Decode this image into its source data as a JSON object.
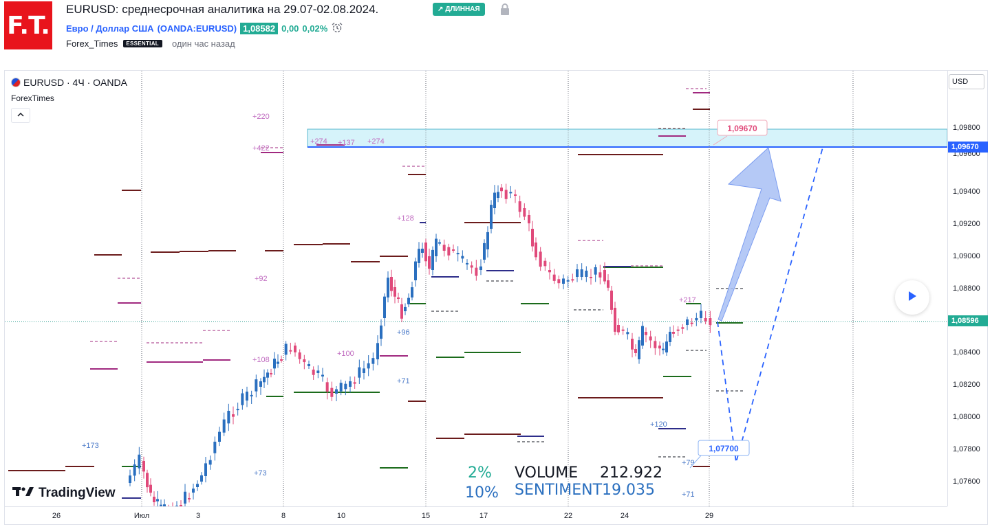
{
  "header": {
    "logo_text": "F.T.",
    "title": "EURUSD: среднесрочная аналитика на 29.07-02.08.2024.",
    "badge_label": "ДЛИННАЯ",
    "symbol_name": "Евро / Доллар США",
    "symbol_code": "(OANDA:EURUSD)",
    "price": "1,08582",
    "change": "0,00",
    "change_pct": "0,02%",
    "author": "Forex_Times",
    "author_badge": "ESSENTIAL",
    "published": "один час назад"
  },
  "chart": {
    "legend": "EURUSD · 4Ч · OANDA",
    "indicator": "ForexTimes",
    "currency_button": "USD",
    "watermark": "TradingView",
    "current_price": "1,08596",
    "resistance_price": "1,09670",
    "callout_high": "1,09670",
    "callout_low": "1,07700",
    "colors": {
      "up": "#2a6fbf",
      "down": "#e0497a",
      "zone": "#d6f3fa",
      "level": "#2962ff",
      "accent_green": "#22ab94"
    }
  },
  "stats": {
    "pct_top": "2%",
    "pct_bottom": "10%",
    "volume_label": "VOLUME",
    "volume_value": "212.922",
    "sentiment_label": "SENTIMENT",
    "sentiment_value": "19.035"
  },
  "price_axis": [
    "1,09800",
    "1,09600",
    "1,09400",
    "1,09200",
    "1,09000",
    "1,08800",
    "1,08400",
    "1,08200",
    "1,08000",
    "1,07800",
    "1,07600"
  ],
  "time_axis": [
    "26",
    "Июл",
    "3",
    "8",
    "10",
    "15",
    "17",
    "22",
    "24",
    "29"
  ],
  "chart_labels": [
    "+220",
    "+422",
    "+274",
    "+137",
    "+274",
    "+92",
    "+108",
    "+100",
    "+96",
    "+71",
    "+173",
    "+73",
    "+128",
    "+217",
    "+120",
    "+79",
    "+71"
  ]
}
